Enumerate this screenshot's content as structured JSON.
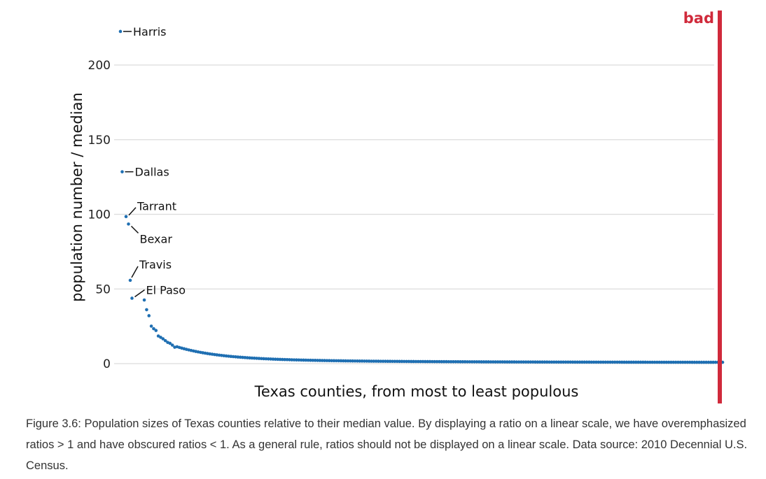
{
  "chart_data": {
    "type": "scatter",
    "xlabel": "Texas counties, from most to least populous",
    "ylabel": "population number / median",
    "ylim": [
      0,
      225
    ],
    "yticks": [
      0,
      50,
      100,
      150,
      200
    ],
    "grid": "horizontal",
    "point_color": "#1f6fb2",
    "n_counties": 254,
    "values": [
      222.5,
      128.5,
      98.5,
      93.5,
      55.8,
      43.8,
      42.6,
      36.1,
      32.1,
      25.1,
      23.4,
      22.2,
      18.5,
      17.6,
      16.6,
      15.4,
      14.2,
      13.6,
      12.4,
      11.0
    ],
    "annotations": [
      {
        "label": "Harris",
        "index": 0
      },
      {
        "label": "Dallas",
        "index": 1
      },
      {
        "label": "Tarrant",
        "index": 2
      },
      {
        "label": "Bexar",
        "index": 3
      },
      {
        "label": "Travis",
        "index": 4
      },
      {
        "label": "El Paso",
        "index": 5
      }
    ]
  },
  "badge": {
    "text": "bad",
    "color": "#d02a3b"
  },
  "caption": "Figure 3.6: Population sizes of Texas counties relative to their median value. By displaying a ratio on a linear scale, we have overemphasized ratios > 1 and have obscured ratios < 1. As a general rule, ratios should not be displayed on a linear scale. Data source: 2010 Decennial U.S. Census."
}
